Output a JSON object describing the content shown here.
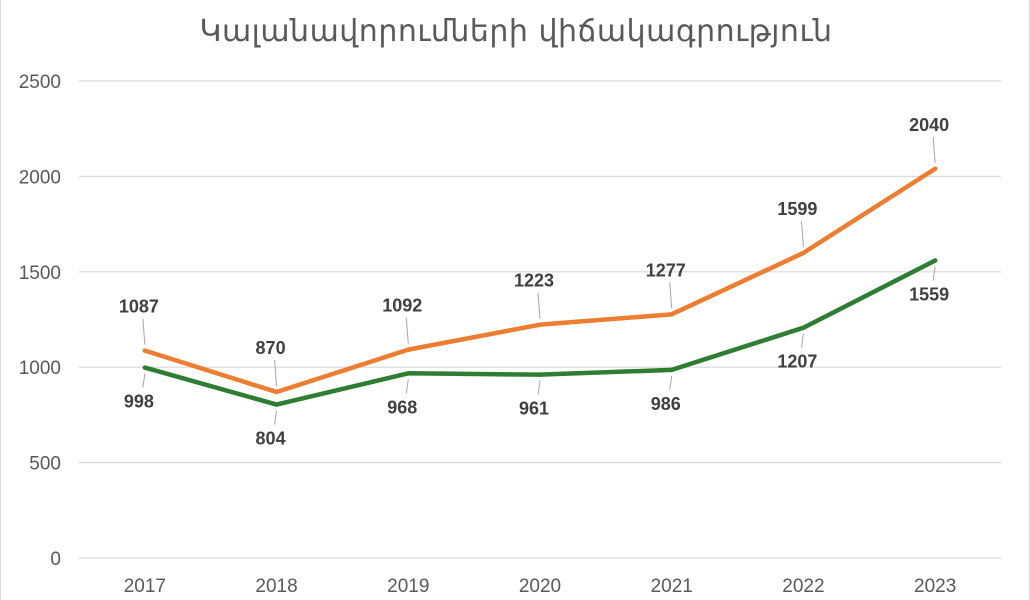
{
  "chart_data": {
    "type": "line",
    "title": "Կալանավորումների վիճակագրություն",
    "xlabel": "",
    "ylabel": "",
    "categories": [
      "2017",
      "2018",
      "2019",
      "2020",
      "2021",
      "2022",
      "2023"
    ],
    "ylim": [
      0,
      2500
    ],
    "yticks": [
      "0",
      "500",
      "1000",
      "1500",
      "2000",
      "2500"
    ],
    "grid": true,
    "legend": "none",
    "series": [
      {
        "values": [
          1087,
          870,
          1092,
          1223,
          1277,
          1599,
          2040
        ],
        "color": "#ED7D31",
        "label_position": "above"
      },
      {
        "values": [
          998,
          804,
          968,
          961,
          986,
          1207,
          1559
        ],
        "color": "#2E7D32",
        "label_position": "below"
      }
    ]
  }
}
